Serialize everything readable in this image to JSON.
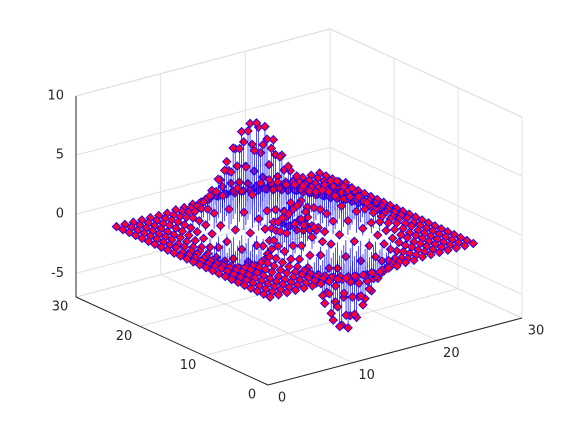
{
  "chart_data": {
    "type": "stem3",
    "x": [
      1,
      2,
      3,
      4,
      5,
      6,
      7,
      8,
      9,
      10,
      11,
      12,
      13,
      14,
      15,
      16,
      17,
      18,
      19,
      20,
      21,
      22,
      23,
      24,
      25
    ],
    "y": [
      1,
      2,
      3,
      4,
      5,
      6,
      7,
      8,
      9,
      10,
      11,
      12,
      13,
      14,
      15,
      16,
      17,
      18,
      19,
      20,
      21,
      22,
      23,
      24,
      25
    ],
    "z": [
      [
        0,
        0,
        0,
        0,
        0,
        0,
        0,
        0,
        0,
        -0.1,
        -0.1,
        -0.2,
        -0.2,
        -0.3,
        -0.2,
        -0.2,
        -0.1,
        -0.1,
        0,
        0,
        0,
        0,
        0,
        0,
        0
      ],
      [
        0,
        0,
        0,
        0,
        0,
        0,
        0,
        0,
        -0.1,
        -0.2,
        -0.4,
        -0.6,
        -0.7,
        -0.7,
        -0.6,
        -0.5,
        -0.3,
        -0.2,
        -0.1,
        0,
        0,
        0,
        0,
        0,
        0
      ],
      [
        0,
        0,
        0,
        0,
        0,
        0,
        0,
        -0.1,
        -0.2,
        -0.5,
        -0.9,
        -1.3,
        -1.6,
        -1.6,
        -1.4,
        -1.1,
        -0.7,
        -0.4,
        -0.2,
        -0.1,
        0,
        0,
        0,
        0,
        0
      ],
      [
        0,
        0,
        0,
        0,
        0,
        0,
        0,
        -0.1,
        -0.4,
        -1.0,
        -1.7,
        -2.5,
        -3.0,
        -3.1,
        -2.7,
        -2.0,
        -1.3,
        -0.7,
        -0.3,
        -0.1,
        0,
        0,
        0,
        0,
        0
      ],
      [
        0,
        0,
        0,
        0,
        0,
        0.1,
        0,
        -0.1,
        -0.6,
        -1.4,
        -2.6,
        -3.9,
        -4.8,
        -4.9,
        -4.3,
        -3.3,
        -2.1,
        -1.1,
        -0.5,
        -0.2,
        -0.1,
        0,
        0,
        0,
        0
      ],
      [
        0,
        0,
        0,
        0,
        0.1,
        0.1,
        0.2,
        0,
        -0.5,
        -1.5,
        -3.0,
        -4.7,
        -6.0,
        -6.3,
        -5.6,
        -4.2,
        -2.7,
        -1.4,
        -0.6,
        -0.2,
        0,
        0,
        0,
        0,
        0
      ],
      [
        0,
        0,
        0,
        0,
        0.1,
        0.2,
        0.3,
        0.4,
        0.2,
        -0.7,
        -2.2,
        -4.1,
        -5.7,
        -6.3,
        -5.7,
        -4.3,
        -2.6,
        -1.3,
        -0.4,
        -0.1,
        0,
        0,
        0,
        0,
        0
      ],
      [
        0,
        0,
        0,
        0,
        0,
        0.2,
        0.4,
        0.8,
        1.1,
        0.9,
        -0.1,
        -1.9,
        -3.6,
        -4.6,
        -4.4,
        -3.2,
        -1.7,
        -0.6,
        0.1,
        0.3,
        0.2,
        0.1,
        0.1,
        0,
        0
      ],
      [
        0,
        0,
        -0.1,
        -0.1,
        -0.1,
        0,
        0.3,
        1.0,
        1.9,
        2.5,
        2.2,
        1.0,
        -0.7,
        -2.0,
        -2.2,
        -1.4,
        -0.3,
        0.6,
        0.9,
        0.8,
        0.5,
        0.3,
        0.1,
        0,
        0
      ],
      [
        0,
        0,
        -0.1,
        -0.3,
        -0.4,
        -0.5,
        -0.3,
        0.5,
        1.8,
        3.1,
        3.6,
        2.9,
        1.4,
        0,
        -0.4,
        0.2,
        1.2,
        1.8,
        1.8,
        1.3,
        0.8,
        0.4,
        0.2,
        0.1,
        0
      ],
      [
        0,
        -0.1,
        -0.2,
        -0.4,
        -0.8,
        -1.2,
        -1.2,
        -0.6,
        0.8,
        2.5,
        3.6,
        3.3,
        2.0,
        0.7,
        0.4,
        1.1,
        2.2,
        2.8,
        2.6,
        1.9,
        1.1,
        0.6,
        0.2,
        0.1,
        0
      ],
      [
        0,
        -0.1,
        -0.3,
        -0.6,
        -1.1,
        -1.8,
        -2.2,
        -1.8,
        -0.6,
        1.2,
        2.6,
        2.6,
        1.6,
        0.5,
        0.5,
        1.5,
        2.8,
        3.4,
        3.1,
        2.2,
        1.3,
        0.7,
        0.3,
        0.1,
        0
      ],
      [
        0,
        -0.1,
        -0.3,
        -0.7,
        -1.3,
        -2.1,
        -2.8,
        -2.7,
        -1.6,
        0.1,
        1.5,
        1.7,
        1.0,
        0.2,
        0.4,
        1.6,
        2.9,
        3.6,
        3.3,
        2.4,
        1.4,
        0.7,
        0.3,
        0.1,
        0
      ],
      [
        0,
        -0.1,
        -0.3,
        -0.7,
        -1.3,
        -2.2,
        -2.9,
        -3.0,
        -2.1,
        -0.6,
        0.7,
        1.1,
        0.5,
        0,
        0.3,
        1.5,
        2.8,
        3.4,
        3.1,
        2.2,
        1.3,
        0.7,
        0.3,
        0.1,
        0
      ],
      [
        0,
        -0.1,
        -0.2,
        -0.6,
        -1.1,
        -1.8,
        -2.5,
        -2.6,
        -2.0,
        -0.8,
        0.4,
        0.8,
        0.5,
        0.1,
        0.4,
        1.3,
        2.4,
        2.8,
        2.5,
        1.8,
        1.1,
        0.5,
        0.2,
        0.1,
        0
      ],
      [
        0,
        -0.1,
        -0.2,
        -0.4,
        -0.8,
        -1.3,
        -1.8,
        -1.8,
        -1.2,
        0,
        1.0,
        1.5,
        1.4,
        1.1,
        1.2,
        1.6,
        2.2,
        2.3,
        2.0,
        1.4,
        0.8,
        0.4,
        0.2,
        0.1,
        0
      ],
      [
        0,
        0,
        -0.1,
        -0.3,
        -0.5,
        -0.7,
        -0.9,
        -0.6,
        0.2,
        1.5,
        2.8,
        3.6,
        3.7,
        3.3,
        2.9,
        2.7,
        2.4,
        2.1,
        1.6,
        1.0,
        0.6,
        0.3,
        0.1,
        0,
        0
      ],
      [
        0,
        0,
        -0.1,
        -0.1,
        -0.2,
        -0.2,
        0,
        0.5,
        1.7,
        3.3,
        4.9,
        6.1,
        6.4,
        5.9,
        5.0,
        4.0,
        3.0,
        2.1,
        1.4,
        0.8,
        0.4,
        0.2,
        0.1,
        0,
        0
      ],
      [
        0,
        0,
        0,
        0,
        0,
        0.1,
        0.5,
        1.3,
        2.6,
        4.4,
        6.2,
        7.5,
        8.0,
        7.5,
        6.2,
        4.7,
        3.2,
        2.1,
        1.2,
        0.6,
        0.3,
        0.1,
        0,
        0,
        0
      ],
      [
        0,
        0,
        0,
        0,
        0.1,
        0.2,
        0.6,
        1.4,
        2.7,
        4.3,
        6.0,
        7.2,
        7.7,
        7.2,
        6.0,
        4.5,
        3.0,
        1.8,
        1.0,
        0.5,
        0.2,
        0.1,
        0,
        0,
        0
      ],
      [
        0,
        0,
        0,
        0,
        0.1,
        0.2,
        0.6,
        1.2,
        2.1,
        3.3,
        4.6,
        5.5,
        5.9,
        5.5,
        4.6,
        3.4,
        2.2,
        1.3,
        0.7,
        0.3,
        0.1,
        0,
        0,
        0,
        0
      ],
      [
        0,
        0,
        0,
        0,
        0.1,
        0.2,
        0.4,
        0.7,
        1.3,
        2.1,
        2.8,
        3.4,
        3.6,
        3.4,
        2.8,
        2.1,
        1.4,
        0.8,
        0.4,
        0.2,
        0.1,
        0,
        0,
        0,
        0
      ],
      [
        0,
        0,
        0,
        0,
        0,
        0.1,
        0.2,
        0.4,
        0.7,
        1.1,
        1.5,
        1.8,
        1.9,
        1.8,
        1.5,
        1.1,
        0.7,
        0.4,
        0.2,
        0.1,
        0,
        0,
        0,
        0,
        0
      ],
      [
        0,
        0,
        0,
        0,
        0,
        0,
        0.1,
        0.2,
        0.3,
        0.5,
        0.6,
        0.8,
        0.8,
        0.8,
        0.6,
        0.5,
        0.3,
        0.2,
        0.1,
        0,
        0,
        0,
        0,
        0,
        0
      ],
      [
        0,
        0,
        0,
        0,
        0,
        0,
        0,
        0.1,
        0.1,
        0.2,
        0.2,
        0.3,
        0.3,
        0.3,
        0.2,
        0.2,
        0.1,
        0.1,
        0,
        0,
        0,
        0,
        0,
        0,
        0
      ]
    ],
    "xlim": [
      0,
      30
    ],
    "ylim": [
      0,
      30
    ],
    "zlim": [
      -7,
      10
    ],
    "xticks": [
      0,
      10,
      20,
      30
    ],
    "yticks": [
      0,
      10,
      20,
      30
    ],
    "zticks": [
      -5,
      0,
      5,
      10
    ],
    "grid": true,
    "color": "#0000ff",
    "marker_color": "#ff0033"
  }
}
